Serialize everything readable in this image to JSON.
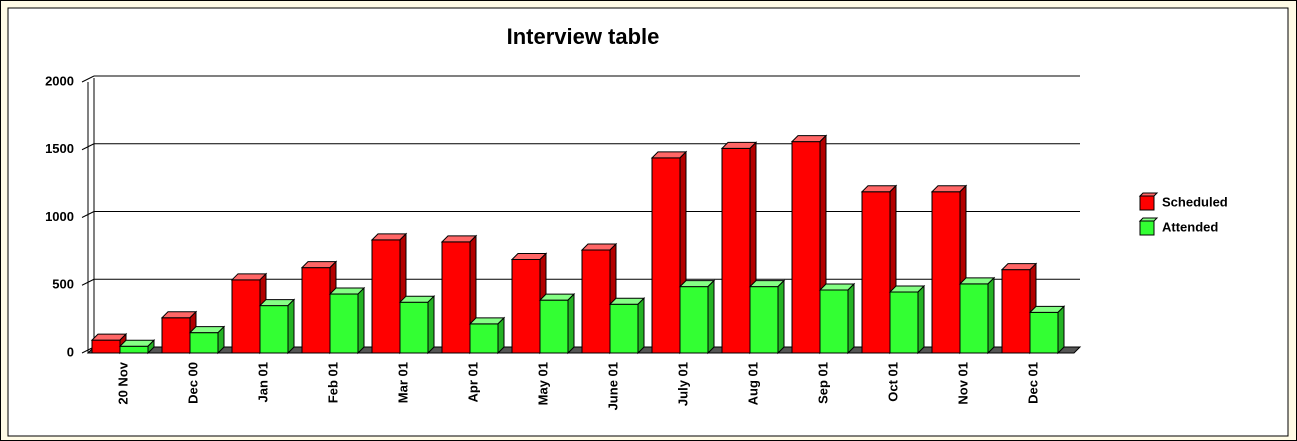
{
  "chart_data": {
    "type": "bar",
    "title": "Interview table",
    "categories": [
      "20 Nov",
      "Dec 00",
      "Jan 01",
      "Feb 01",
      "Mar 01",
      "Apr 01",
      "May 01",
      "June 01",
      "July 01",
      "Aug 01",
      "Sep 01",
      "Oct 01",
      "Nov 01",
      "Dec 01"
    ],
    "series": [
      {
        "name": "Scheduled",
        "color": "#ff0000",
        "values": [
          95,
          260,
          540,
          630,
          835,
          820,
          690,
          760,
          1440,
          1510,
          1560,
          1190,
          1190,
          615
        ]
      },
      {
        "name": "Attended",
        "color": "#33ff33",
        "values": [
          50,
          150,
          350,
          435,
          375,
          215,
          390,
          360,
          490,
          490,
          465,
          450,
          510,
          300
        ]
      }
    ],
    "ylim": [
      0,
      2000
    ],
    "yticks": [
      0,
      500,
      1000,
      1500,
      2000
    ],
    "grid": true,
    "legend": "right"
  }
}
